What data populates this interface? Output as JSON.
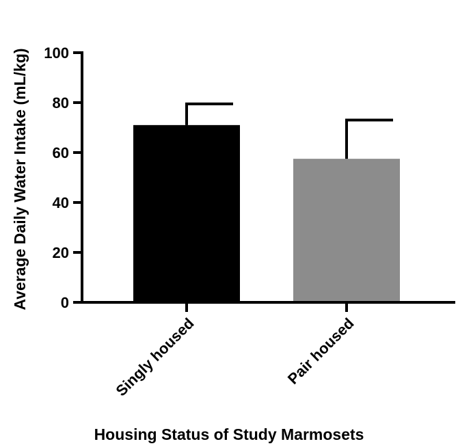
{
  "chart_data": {
    "type": "bar",
    "categories": [
      "Singly housed",
      "Pair housed"
    ],
    "values": [
      71,
      57.5
    ],
    "error_upper": [
      79.5,
      73
    ],
    "bar_colors": [
      "#000000",
      "#8c8c8c"
    ],
    "xlabel": "Housing Status of Study Marmosets",
    "ylabel": "Average Daily Water Intake (mL/kg)",
    "ylim": [
      0,
      100
    ],
    "yticks": [
      "0",
      "20",
      "40",
      "60",
      "80",
      "100"
    ],
    "grid": false,
    "legend": "none"
  }
}
